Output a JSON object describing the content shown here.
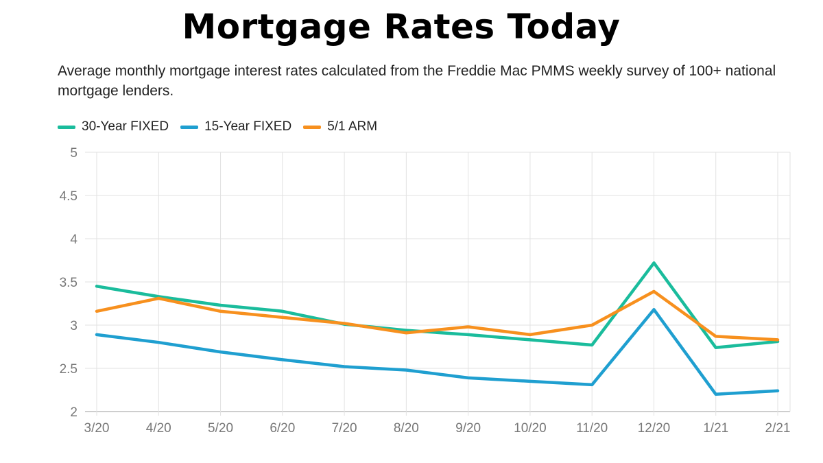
{
  "title": "Mortgage Rates Today",
  "subtitle": "Average monthly mortgage interest rates calculated from the Freddie Mac PMMS weekly survey of 100+ national mortgage lenders.",
  "chart_data": {
    "type": "line",
    "title": "",
    "xlabel": "",
    "ylabel": "",
    "categories": [
      "3/20",
      "4/20",
      "5/20",
      "6/20",
      "7/20",
      "8/20",
      "9/20",
      "10/20",
      "11/20",
      "12/20",
      "1/21",
      "2/21"
    ],
    "ylim": [
      2,
      5
    ],
    "yticks": [
      "2",
      "2.5",
      "3",
      "3.5",
      "4",
      "4.5",
      "5"
    ],
    "grid": true,
    "legend_position": "top-left",
    "series": [
      {
        "name": "30-Year FIXED",
        "color": "#1abc9c",
        "values": [
          3.45,
          3.33,
          3.23,
          3.16,
          3.01,
          2.94,
          2.89,
          2.83,
          2.77,
          3.72,
          2.74,
          2.81
        ]
      },
      {
        "name": "15-Year FIXED",
        "color": "#1f9fd0",
        "values": [
          2.89,
          2.8,
          2.69,
          2.6,
          2.52,
          2.48,
          2.39,
          2.35,
          2.31,
          3.18,
          2.2,
          2.24
        ]
      },
      {
        "name": "5/1 ARM",
        "color": "#f7901e",
        "values": [
          3.16,
          3.31,
          3.16,
          3.09,
          3.02,
          2.91,
          2.98,
          2.89,
          3.0,
          3.39,
          2.87,
          2.83
        ]
      }
    ]
  }
}
